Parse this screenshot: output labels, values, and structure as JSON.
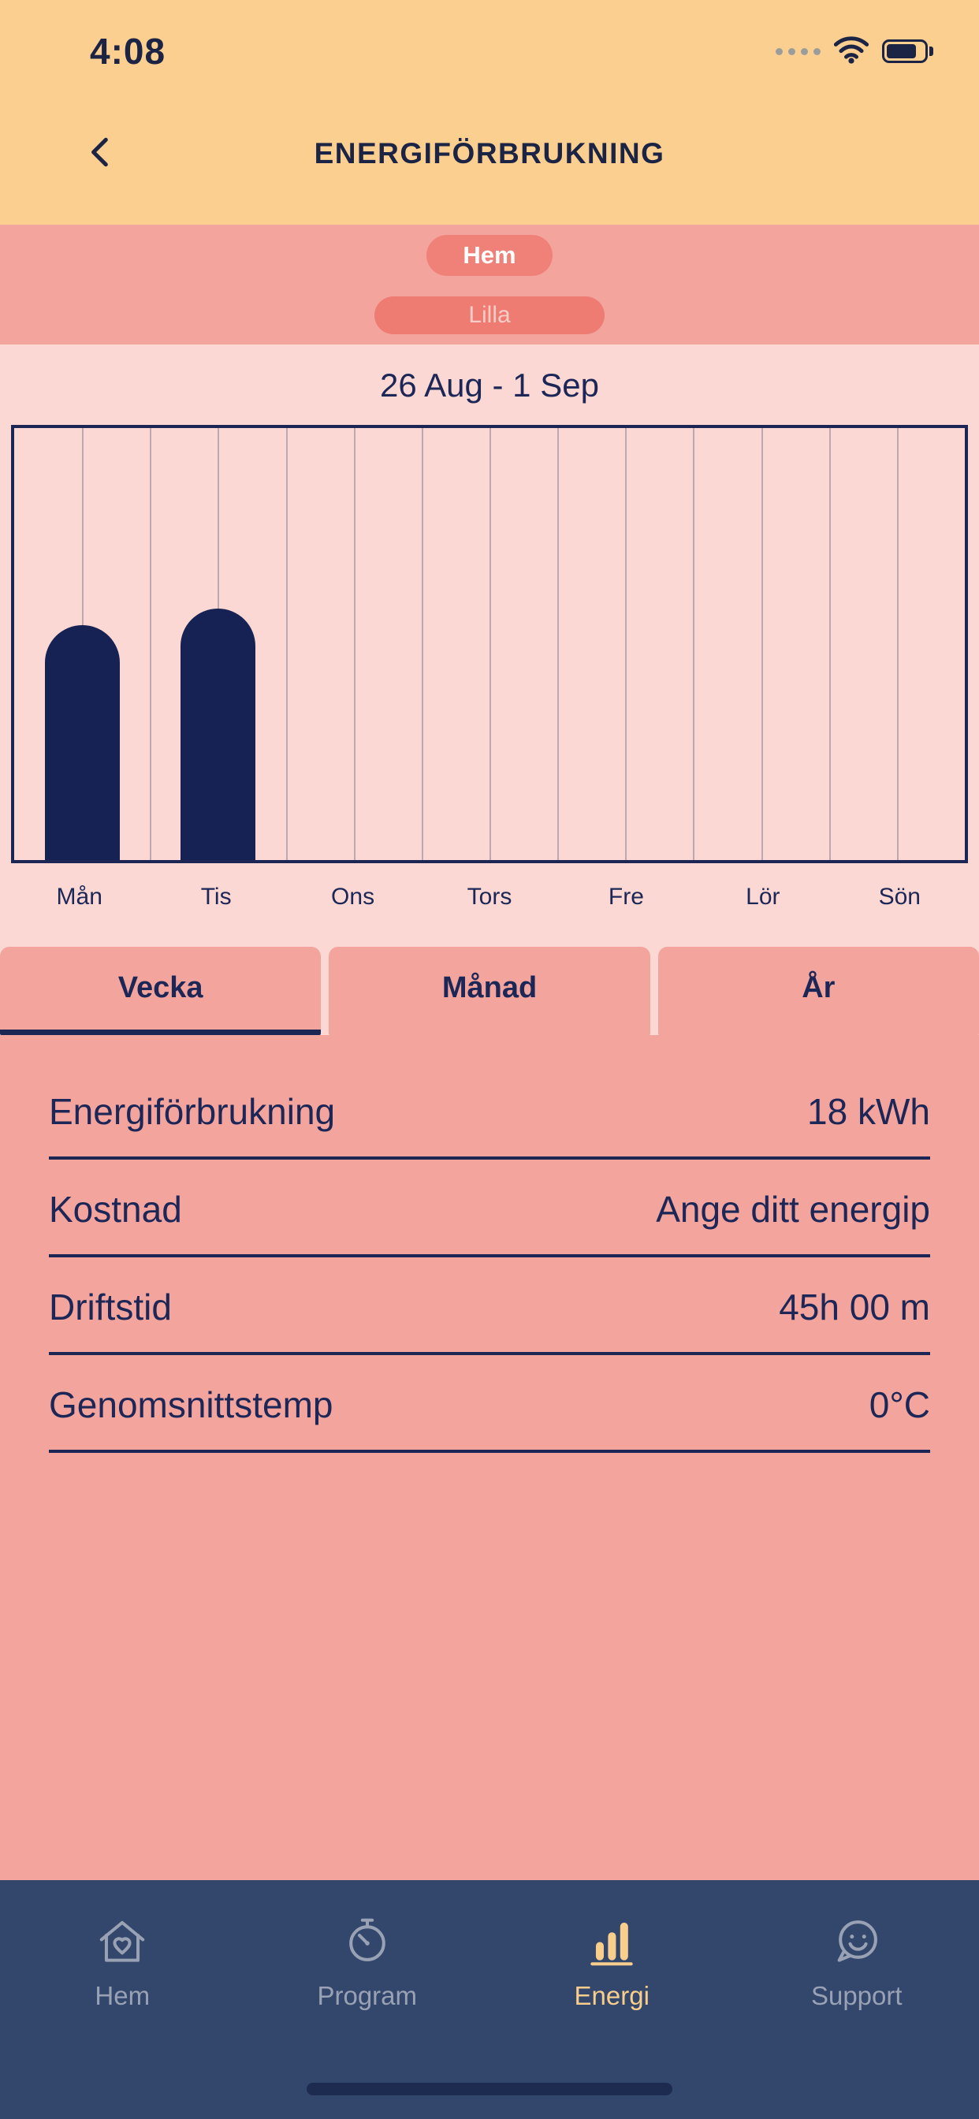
{
  "status_bar": {
    "time": "4:08"
  },
  "header": {
    "title": "ENERGIFÖRBRUKNING"
  },
  "zones": {
    "hem_label": "Hem",
    "lilla_label": "Lilla"
  },
  "chart": {
    "date_range": "26 Aug - 1 Sep"
  },
  "chart_data": {
    "type": "bar",
    "title": "26 Aug - 1 Sep",
    "categories": [
      "Mån",
      "Tis",
      "Ons",
      "Tors",
      "Fre",
      "Lör",
      "Sön"
    ],
    "values": [
      8.7,
      9.3,
      0,
      0,
      0,
      0,
      0
    ],
    "unit": "kWh",
    "weekly_total": "18 kWh",
    "ylim": [
      0,
      16
    ],
    "grid": "vertical",
    "legend": "none"
  },
  "tabs": [
    {
      "label": "Vecka",
      "active": true
    },
    {
      "label": "Månad",
      "active": false
    },
    {
      "label": "År",
      "active": false
    }
  ],
  "stats": [
    {
      "label": "Energiförbrukning",
      "value": "18 kWh"
    },
    {
      "label": "Kostnad",
      "value": "Ange ditt energip"
    },
    {
      "label": "Driftstid",
      "value": "45h 00 m"
    },
    {
      "label": "Genomsnittstemp",
      "value": "0°C"
    }
  ],
  "nav": [
    {
      "label": "Hem",
      "icon": "home-heart-icon",
      "active": false
    },
    {
      "label": "Program",
      "icon": "timer-icon",
      "active": false
    },
    {
      "label": "Energi",
      "icon": "bar-chart-icon",
      "active": true
    },
    {
      "label": "Support",
      "icon": "support-chat-icon",
      "active": false
    }
  ],
  "colors": {
    "header_yellow": "#FBCF8F",
    "salmon": "#F2A49D",
    "light_pink": "#FBD8D3",
    "navy": "#1C2757",
    "bar_navy": "#172254",
    "nav_bar": "#33466B",
    "nav_inactive": "#99A1B4",
    "nav_active": "#F9CE8D",
    "pill_hem": "#EF8179",
    "pill_lilla": "#EE7C73"
  }
}
